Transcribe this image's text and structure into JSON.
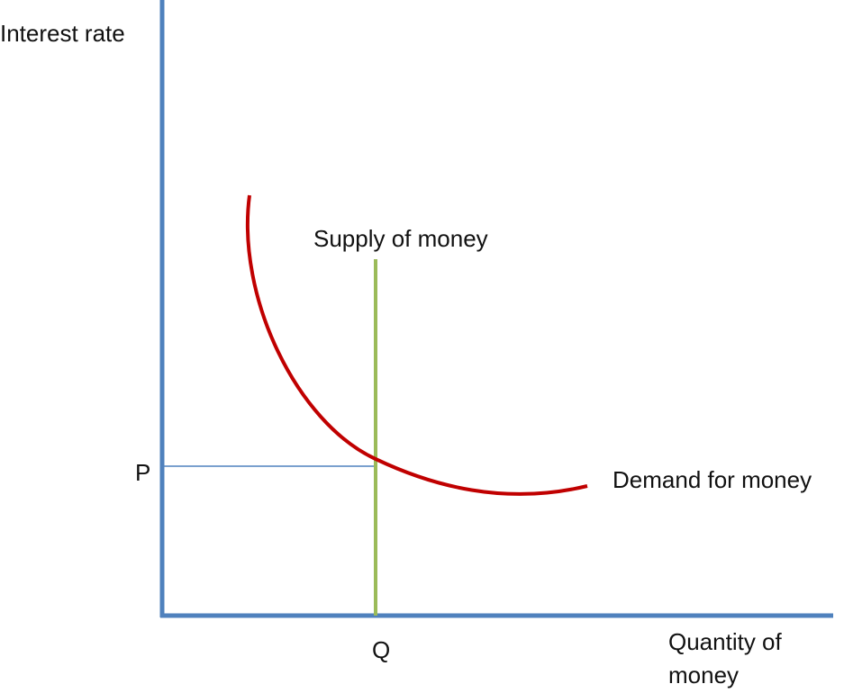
{
  "labels": {
    "y_axis": "Interest rate",
    "x_axis": [
      "Quantity of",
      "money"
    ],
    "supply": "Supply of money",
    "demand": "Demand for money",
    "p": "P",
    "q": "Q"
  }
}
